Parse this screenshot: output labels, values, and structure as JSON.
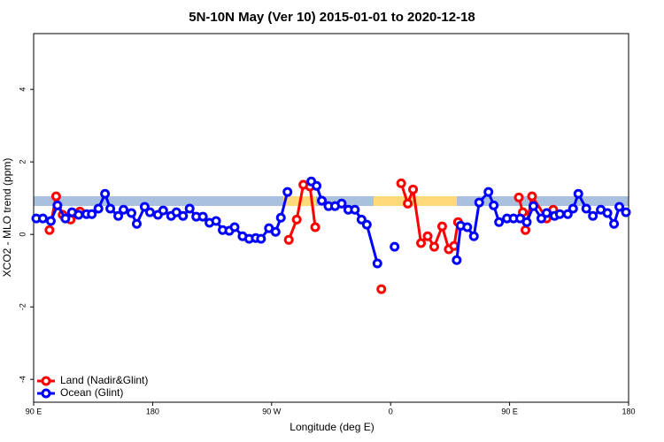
{
  "chart_data": {
    "type": "line",
    "title": "5N-10N May (Ver 10)   2015-01-01 to 2020-12-18",
    "x_label": "Longitude (deg E)",
    "y_label": "XCO2 - MLO trend (ppm)",
    "xlim": [
      90,
      540
    ],
    "ylim": [
      -4.63,
      5.54
    ],
    "xticks": [
      {
        "value": 90,
        "label": "90 E"
      },
      180,
      {
        "value": 270,
        "label": "90 W"
      },
      {
        "value": 360,
        "label": "0"
      },
      {
        "value": 450,
        "label": "90 E"
      },
      {
        "value": 540,
        "label": "180"
      }
    ],
    "yticks": [
      -4,
      -2,
      0,
      2,
      4
    ],
    "legend": "bottom-left",
    "series": [
      {
        "name": "Land (Nadir&Glint)",
        "color": "#ff0000",
        "x": [
          102,
          107,
          112,
          118,
          125,
          null,
          283,
          289,
          294,
          299,
          303,
          null,
          353,
          null,
          368,
          373,
          377,
          383,
          388,
          393,
          399,
          404,
          408,
          411,
          null,
          457,
          460,
          462,
          467,
          478,
          483
        ],
        "values": [
          0.12,
          1.05,
          0.54,
          0.41,
          0.63,
          null,
          -0.15,
          0.41,
          1.37,
          1.32,
          0.2,
          null,
          -1.51,
          null,
          1.41,
          0.85,
          1.24,
          -0.24,
          -0.05,
          -0.34,
          0.22,
          -0.41,
          -0.32,
          0.34,
          null,
          1.02,
          0.61,
          0.12,
          1.05,
          0.44,
          0.68
        ]
      },
      {
        "name": "Ocean (Glint)",
        "color": "#0000ff",
        "x": [
          92,
          97,
          103,
          108,
          114,
          119,
          124,
          130,
          134,
          139,
          144,
          148,
          154,
          158,
          164,
          168,
          174,
          178,
          184,
          188,
          194,
          198,
          203,
          208,
          213,
          218,
          223,
          228,
          233,
          238,
          242,
          248,
          253,
          258,
          262,
          268,
          273,
          277,
          282,
          null,
          300,
          304,
          308,
          313,
          318,
          323,
          328,
          333,
          338,
          342,
          350,
          null,
          363,
          null,
          410,
          413,
          418,
          423,
          427,
          434,
          438,
          442,
          448,
          453,
          458,
          463,
          468,
          474,
          478,
          484,
          488,
          494,
          498,
          502,
          508,
          513,
          519,
          524,
          529,
          533,
          538
        ],
        "values": [
          0.44,
          0.44,
          0.37,
          0.8,
          0.44,
          0.61,
          0.54,
          0.56,
          0.56,
          0.71,
          1.12,
          0.71,
          0.51,
          0.68,
          0.59,
          0.29,
          0.76,
          0.61,
          0.54,
          0.66,
          0.51,
          0.61,
          0.51,
          0.71,
          0.49,
          0.49,
          0.32,
          0.37,
          0.12,
          0.1,
          0.2,
          -0.05,
          -0.12,
          -0.1,
          -0.12,
          0.17,
          0.07,
          0.46,
          1.17,
          null,
          1.46,
          1.34,
          0.93,
          0.78,
          0.78,
          0.85,
          0.68,
          0.68,
          0.41,
          0.27,
          -0.8,
          null,
          -0.34,
          null,
          -0.71,
          0.24,
          0.2,
          -0.05,
          0.88,
          1.17,
          0.8,
          0.34,
          0.44,
          0.44,
          0.44,
          0.34,
          0.78,
          0.44,
          0.59,
          0.51,
          0.56,
          0.56,
          0.71,
          1.12,
          0.71,
          0.51,
          0.68,
          0.59,
          0.29,
          0.76,
          0.61
        ]
      }
    ]
  }
}
